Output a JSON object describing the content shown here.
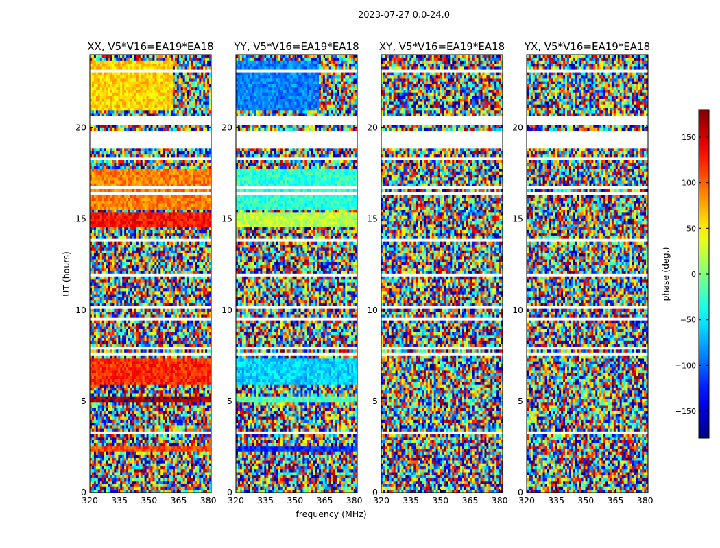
{
  "chart_data": {
    "type": "heatmap",
    "suptitle": "2023-07-27 0.0-24.0",
    "xlabel": "frequency (MHz)",
    "ylabel": "UT (hours)",
    "xlim": [
      320,
      381.5
    ],
    "ylim": [
      0,
      24
    ],
    "x_ticks": [
      320,
      335,
      350,
      365,
      380
    ],
    "y_ticks": [
      0,
      5,
      10,
      15,
      20
    ],
    "colormap": "jet",
    "colorbar": {
      "label": "phase (deg.)",
      "range": [
        -180,
        180
      ],
      "ticks": [
        -150,
        -100,
        -50,
        0,
        50,
        100,
        150
      ],
      "tick_labels": [
        "−150",
        "−100",
        "−50",
        "0",
        "50",
        "100",
        "150"
      ]
    },
    "panels": [
      {
        "title": "XX, V5*V16=EA19*EA18",
        "coherent_bands_deg": [
          {
            "ut": [
              21.0,
              23.6
            ],
            "phase_deg": 60,
            "note": "coherent below ~362 MHz, noisy above"
          },
          {
            "ut": [
              15.5,
              17.8
            ],
            "phase_deg": 90
          },
          {
            "ut": [
              14.6,
              15.3
            ],
            "phase_deg": 130
          },
          {
            "ut": [
              5.9,
              7.4
            ],
            "phase_deg": 120
          },
          {
            "ut": [
              4.9,
              5.3
            ],
            "phase_deg": 165
          },
          {
            "ut": [
              2.2,
              2.5
            ],
            "phase_deg": 110
          }
        ]
      },
      {
        "title": "YY, V5*V16=EA19*EA18",
        "coherent_bands_deg": [
          {
            "ut": [
              21.0,
              23.6
            ],
            "phase_deg": -90,
            "note": "coherent below ~362 MHz, noisy above"
          },
          {
            "ut": [
              15.5,
              17.8
            ],
            "phase_deg": -30
          },
          {
            "ut": [
              14.6,
              15.3
            ],
            "phase_deg": 20
          },
          {
            "ut": [
              5.9,
              7.4
            ],
            "phase_deg": -60
          },
          {
            "ut": [
              4.9,
              5.3
            ],
            "phase_deg": -20
          },
          {
            "ut": [
              2.2,
              2.5
            ],
            "phase_deg": -120
          }
        ]
      },
      {
        "title": "XY, V5*V16=EA19*EA18",
        "coherent_bands_deg": []
      },
      {
        "title": "YX, V5*V16=EA19*EA18",
        "coherent_bands_deg": []
      }
    ],
    "data_gaps_ut_hours": [
      [
        18.9,
        19.9
      ],
      [
        20.1,
        20.7
      ]
    ],
    "grid": false
  }
}
